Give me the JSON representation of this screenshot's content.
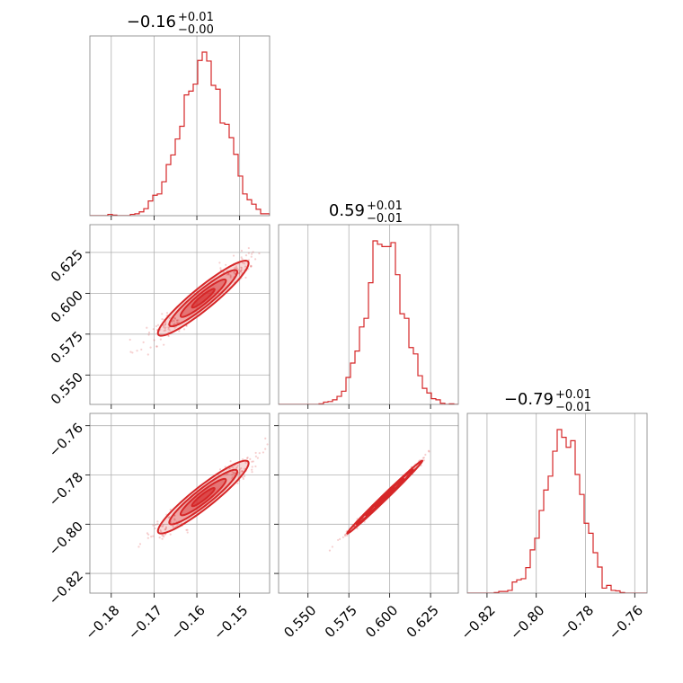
{
  "chart_data": {
    "type": "corner",
    "color": "#d62728",
    "grid": true,
    "parameters": [
      {
        "title": {
          "value": "−0.16",
          "plus": "+0.01",
          "minus": "−0.00"
        },
        "range": [
          -0.185,
          -0.143
        ],
        "ticks": [
          -0.18,
          -0.17,
          -0.16,
          -0.15
        ],
        "tick_labels": [
          "−0.18",
          "−0.17",
          "−0.16",
          "−0.15"
        ],
        "mean": -0.1585,
        "sd": 0.0053
      },
      {
        "title": {
          "value": "0.59",
          "plus": "+0.01",
          "minus": "−0.01"
        },
        "range": [
          0.532,
          0.642
        ],
        "ticks": [
          0.55,
          0.575,
          0.6,
          0.625
        ],
        "tick_labels": [
          "0.550",
          "0.575",
          "0.600",
          "0.625"
        ],
        "mean": 0.597,
        "sd": 0.0115
      },
      {
        "title": {
          "value": "−0.79",
          "plus": "+0.01",
          "minus": "−0.01"
        },
        "range": [
          -0.828,
          -0.755
        ],
        "ticks": [
          -0.82,
          -0.8,
          -0.78,
          -0.76
        ],
        "tick_labels": [
          "−0.82",
          "−0.80",
          "−0.78",
          "−0.76"
        ],
        "mean": -0.789,
        "sd": 0.0074
      }
    ],
    "correlations": {
      "1_0": 0.93,
      "2_0": 0.93,
      "2_1": 0.995
    }
  }
}
